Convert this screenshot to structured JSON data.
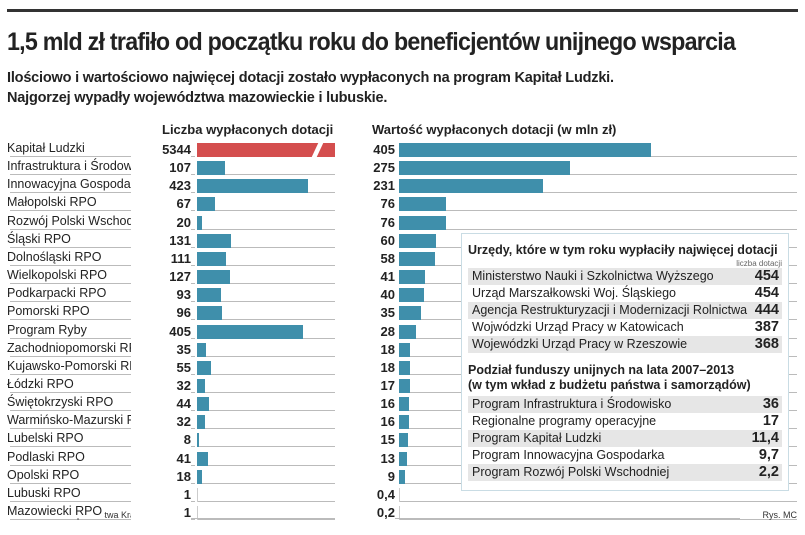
{
  "title": "1,5 mld zł trafiło od początku roku do beneficjentów unijnego wsparcia",
  "subtitle": [
    "Ilościowo i wartościowo najwięcej dotacji zostało wypłaconych na program Kapitał Ludzki.",
    "Najgorzej wypadły województwa mazowieckie i lubuskie."
  ],
  "chart_data": {
    "type": "bar",
    "categories": [
      "Kapitał Ludzki",
      "Infrastruktura i Środowisko",
      "Innowacyjna Gospodarka",
      "Małopolski RPO",
      "Rozwój Polski Wschodniej",
      "Śląski RPO",
      "Dolnośląski RPO",
      "Wielkopolski RPO",
      "Podkarpacki RPO",
      "Pomorski RPO",
      "Program Ryby",
      "Zachodniopomorski RPO",
      "Kujawsko-Pomorski RPO",
      "Łódzki RPO",
      "Świętokrzyski RPO",
      "Warmińsko-Mazurski RPO",
      "Lubelski RPO",
      "Podlaski RPO",
      "Opolski RPO",
      "Lubuski RPO",
      "Mazowiecki RPO"
    ],
    "series": [
      {
        "name": "Liczba wypłaconych dotacji",
        "values": [
          5344,
          107,
          423,
          67,
          20,
          131,
          111,
          127,
          93,
          96,
          405,
          35,
          55,
          32,
          44,
          32,
          8,
          41,
          18,
          1,
          1
        ],
        "labels": [
          "5344",
          "107",
          "423",
          "67",
          "20",
          "131",
          "111",
          "127",
          "93",
          "96",
          "405",
          "35",
          "55",
          "32",
          "44",
          "32",
          "8",
          "41",
          "18",
          "1",
          "1"
        ],
        "color": "#3f8fab",
        "highlight_color": "#d44e4e"
      },
      {
        "name": "Wartość wypłaconych dotacji (w mln zł)",
        "values": [
          405,
          275,
          231,
          76,
          76,
          60,
          58,
          41,
          40,
          35,
          28,
          18,
          18,
          17,
          16,
          16,
          15,
          13,
          9,
          0.4,
          0.2
        ],
        "labels": [
          "405",
          "275",
          "231",
          "76",
          "76",
          "60",
          "58",
          "41",
          "40",
          "35",
          "28",
          "18",
          "18",
          "17",
          "16",
          "16",
          "15",
          "13",
          "9",
          "0,4",
          "0,2"
        ],
        "color": "#3f8fab"
      }
    ]
  },
  "box": {
    "title1": "Urzędy, które w tym roku wypłaciły najwięcej dotacji",
    "unit": "liczba dotacji",
    "offices": [
      {
        "name": "Ministerstwo Nauki i Szkolnictwa Wyższego",
        "value": "454"
      },
      {
        "name": "Urząd Marszałkowski Woj. Śląskiego",
        "value": "454"
      },
      {
        "name": "Agencja Restrukturyzacji i Modernizacji Rolnictwa",
        "value": "444"
      },
      {
        "name": "Wojwódzki Urząd Pracy w Katowicach",
        "value": "387"
      },
      {
        "name": "Wojewódzki Urząd Pracy w Rzeszowie",
        "value": "368"
      }
    ],
    "title2a": "Podział funduszy unijnych na lata 2007–2013",
    "title2b": "(w tym wkład z budżetu państwa i samorządów)",
    "funds": [
      {
        "name": "Program Infrastruktura i Środowisko",
        "value": "36"
      },
      {
        "name": "Regionalne programy operacyjne",
        "value": "17"
      },
      {
        "name": "Program Kapitał Ludzki",
        "value": "11,4"
      },
      {
        "name": "Program Innowacyjna Gospodarka",
        "value": "9,7"
      },
      {
        "name": "Program Rozwój Polski Wschodniej",
        "value": "2,2"
      }
    ]
  },
  "source": "Źródło: Bank Gospodarstwa Krajowego, MRR",
  "credit": "Rys. MC"
}
